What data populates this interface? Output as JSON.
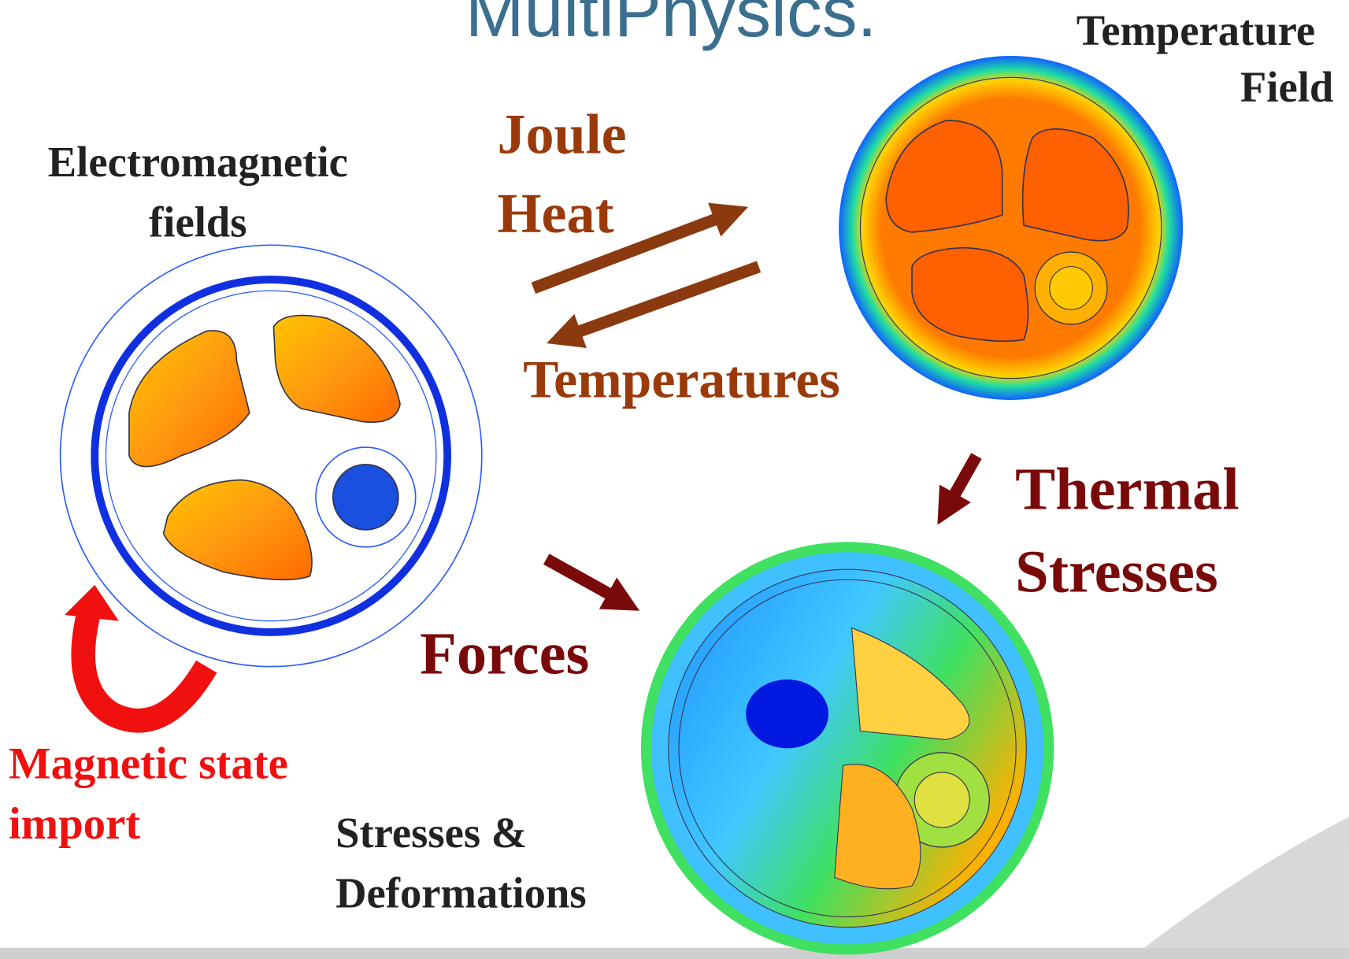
{
  "title": "MultiPhysics.",
  "labels": {
    "temperature_field": [
      "Temperature",
      "Field"
    ],
    "electromagnetic": [
      "Electromagnetic",
      "fields"
    ],
    "joule_heat": [
      "Joule",
      "Heat"
    ],
    "temperatures": "Temperatures",
    "thermal_stresses": [
      "Thermal",
      "Stresses"
    ],
    "forces": "Forces",
    "magnetic_state": [
      "Magnetic state",
      "import"
    ],
    "stresses": [
      "Stresses &",
      "Deformations"
    ]
  }
}
